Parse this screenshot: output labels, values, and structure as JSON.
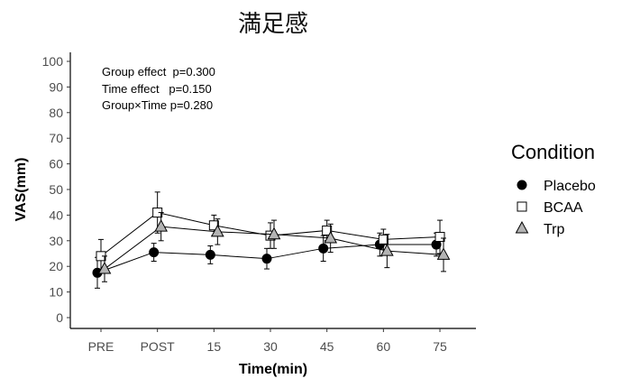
{
  "chart_data": {
    "type": "line",
    "title": "満足感",
    "xlabel": "Time(min)",
    "ylabel": "VAS(mm)",
    "categories": [
      "PRE",
      "POST",
      "15",
      "30",
      "45",
      "60",
      "75"
    ],
    "ylim": [
      0,
      100
    ],
    "yticks": [
      0,
      10,
      20,
      30,
      40,
      50,
      60,
      70,
      80,
      90,
      100
    ],
    "grid": false,
    "legend": {
      "title": "Condition",
      "placement": "right"
    },
    "annotations": [
      "Group effect  p=0.300",
      "Time effect   p=0.150",
      "Group×Time p=0.280"
    ],
    "series": [
      {
        "name": "Placebo",
        "marker": "circle",
        "color": "#000000",
        "values": [
          17.5,
          25.5,
          24.5,
          23,
          27,
          28.5,
          28.5
        ],
        "errors": [
          6,
          3.5,
          3.5,
          4,
          5,
          4.5,
          4.5
        ]
      },
      {
        "name": "BCAA",
        "marker": "square",
        "color": "#ffffff",
        "values": [
          24,
          41,
          36,
          32,
          34,
          30.5,
          31.5
        ],
        "errors": [
          6.5,
          8,
          4,
          5,
          4,
          4,
          6.5
        ]
      },
      {
        "name": "Trp",
        "marker": "triangle",
        "color": "#b3b3b3",
        "values": [
          19,
          35.5,
          33.5,
          32.5,
          31,
          26,
          24.5
        ],
        "errors": [
          5,
          5.5,
          5,
          5.5,
          5.5,
          6.5,
          6.5
        ]
      }
    ]
  }
}
